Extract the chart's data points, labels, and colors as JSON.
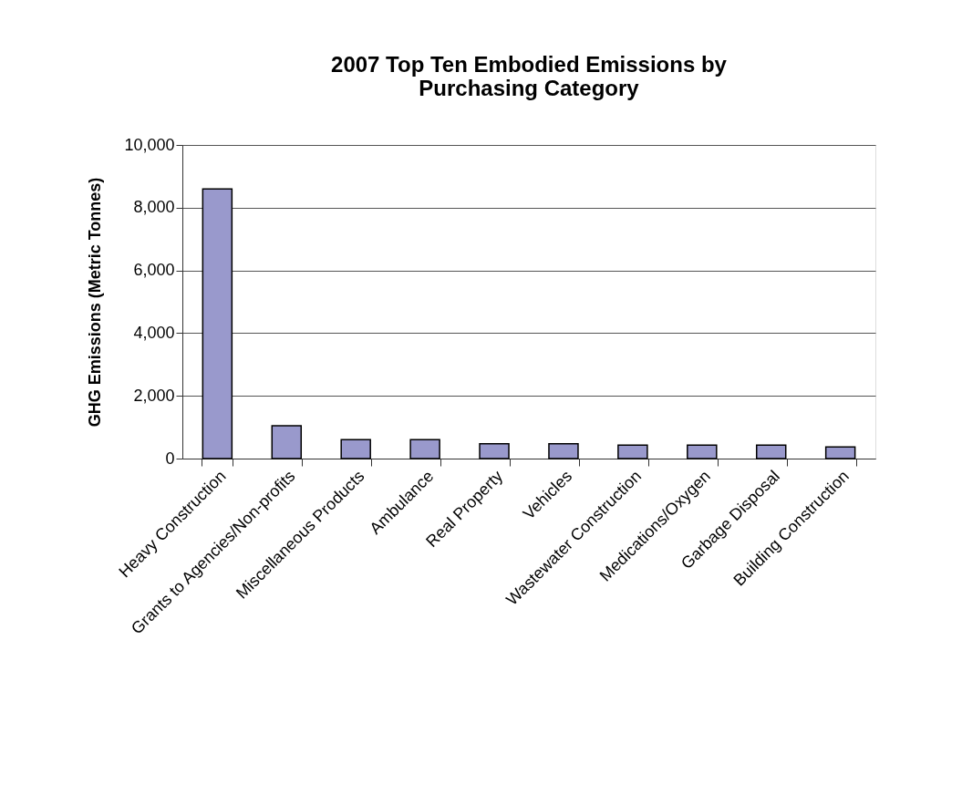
{
  "chart_data": {
    "type": "bar",
    "title": "2007 Top Ten Embodied Emissions by Purchasing Category",
    "ylabel": "GHG Emissions (Metric Tonnes)",
    "categories": [
      "Heavy Construction",
      "Grants to Agencies/Non-profits",
      "Miscellaneous Products",
      "Ambulance",
      "Real Property",
      "Vehicles",
      "Wastewater Construction",
      "Medications/Oxygen",
      "Garbage Disposal",
      "Building Construction"
    ],
    "values": [
      8600,
      1050,
      600,
      600,
      470,
      470,
      430,
      430,
      430,
      370
    ],
    "color": "#9999cc",
    "ylim": [
      0,
      10000
    ],
    "yticks": [
      {
        "value": 0,
        "label": "0"
      },
      {
        "value": 2000,
        "label": "2,000"
      },
      {
        "value": 4000,
        "label": "4,000"
      },
      {
        "value": 6000,
        "label": "6,000"
      },
      {
        "value": 8000,
        "label": "8,000"
      },
      {
        "value": 10000,
        "label": "10,000"
      }
    ],
    "grid": "y"
  }
}
